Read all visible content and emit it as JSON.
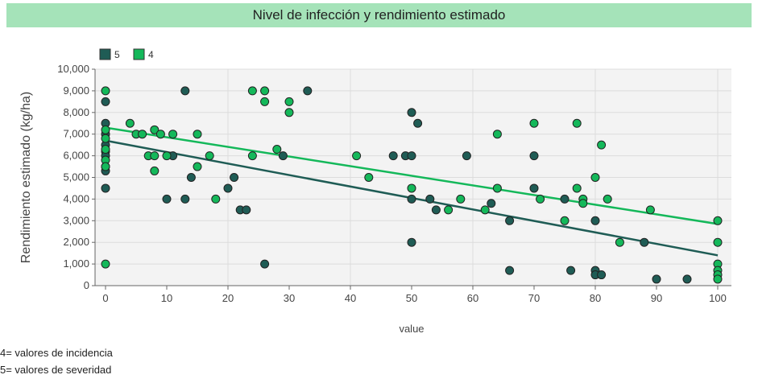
{
  "title": "Nivel de infección y rendimiento estimado",
  "notes": [
    "4= valores de incidencia",
    "5= valores de severidad"
  ],
  "chart_data": {
    "type": "scatter",
    "title": "Nivel de infección y rendimiento estimado",
    "xlabel": "value",
    "ylabel": "Rendimiento estimado (kg/ha)",
    "xlim": [
      0,
      100
    ],
    "ylim": [
      0,
      10000
    ],
    "x_ticks": [
      0,
      10,
      20,
      30,
      40,
      50,
      60,
      70,
      80,
      90,
      100
    ],
    "y_ticks": [
      0,
      1000,
      2000,
      3000,
      4000,
      5000,
      6000,
      7000,
      8000,
      9000,
      10000
    ],
    "x_tick_labels": [
      "0",
      "10",
      "20",
      "30",
      "40",
      "50",
      "60",
      "70",
      "80",
      "90",
      "100"
    ],
    "y_tick_labels": [
      "0",
      "1,000",
      "2,000",
      "3,000",
      "4,000",
      "5,000",
      "6,000",
      "7,000",
      "8,000",
      "9,000",
      "10,000"
    ],
    "grid": true,
    "legend_position": "top-left",
    "series": [
      {
        "name": "5",
        "color": "#1f5c55",
        "trendline": [
          [
            0,
            6700
          ],
          [
            100,
            1400
          ]
        ],
        "points": [
          [
            0,
            8500
          ],
          [
            0,
            7500
          ],
          [
            0,
            7000
          ],
          [
            0,
            6500
          ],
          [
            0,
            6200
          ],
          [
            0,
            6000
          ],
          [
            0,
            5500
          ],
          [
            0,
            5300
          ],
          [
            0,
            4500
          ],
          [
            10,
            4000
          ],
          [
            11,
            6000
          ],
          [
            13,
            9000
          ],
          [
            13,
            4000
          ],
          [
            14,
            5000
          ],
          [
            20,
            4500
          ],
          [
            21,
            5000
          ],
          [
            22,
            3500
          ],
          [
            23,
            3500
          ],
          [
            26,
            1000
          ],
          [
            29,
            6000
          ],
          [
            33,
            9000
          ],
          [
            47,
            6000
          ],
          [
            49,
            6000
          ],
          [
            50,
            8000
          ],
          [
            50,
            6000
          ],
          [
            50,
            4000
          ],
          [
            50,
            2000
          ],
          [
            51,
            7500
          ],
          [
            53,
            4000
          ],
          [
            54,
            3500
          ],
          [
            59,
            6000
          ],
          [
            63,
            3800
          ],
          [
            66,
            3000
          ],
          [
            66,
            700
          ],
          [
            70,
            6000
          ],
          [
            70,
            4500
          ],
          [
            75,
            4000
          ],
          [
            76,
            700
          ],
          [
            80,
            3000
          ],
          [
            80,
            700
          ],
          [
            80,
            500
          ],
          [
            81,
            500
          ],
          [
            88,
            2000
          ],
          [
            90,
            300
          ],
          [
            95,
            300
          ]
        ]
      },
      {
        "name": "4",
        "color": "#14b85a",
        "trendline": [
          [
            0,
            7300
          ],
          [
            100,
            2850
          ]
        ],
        "points": [
          [
            0,
            9000
          ],
          [
            0,
            7200
          ],
          [
            0,
            6800
          ],
          [
            0,
            6300
          ],
          [
            0,
            5800
          ],
          [
            0,
            5500
          ],
          [
            0,
            1000
          ],
          [
            4,
            7500
          ],
          [
            5,
            7000
          ],
          [
            6,
            7000
          ],
          [
            7,
            6000
          ],
          [
            8,
            7200
          ],
          [
            8,
            6000
          ],
          [
            8,
            5300
          ],
          [
            9,
            7000
          ],
          [
            10,
            6000
          ],
          [
            11,
            7000
          ],
          [
            15,
            7000
          ],
          [
            15,
            5500
          ],
          [
            17,
            6000
          ],
          [
            18,
            4000
          ],
          [
            24,
            9000
          ],
          [
            24,
            6000
          ],
          [
            26,
            9000
          ],
          [
            26,
            8500
          ],
          [
            28,
            6300
          ],
          [
            30,
            8500
          ],
          [
            30,
            8000
          ],
          [
            41,
            6000
          ],
          [
            43,
            5000
          ],
          [
            50,
            4500
          ],
          [
            56,
            3500
          ],
          [
            58,
            4000
          ],
          [
            62,
            3500
          ],
          [
            64,
            7000
          ],
          [
            64,
            4500
          ],
          [
            70,
            7500
          ],
          [
            71,
            4000
          ],
          [
            75,
            3000
          ],
          [
            77,
            7500
          ],
          [
            77,
            4500
          ],
          [
            78,
            4000
          ],
          [
            78,
            3800
          ],
          [
            80,
            5000
          ],
          [
            81,
            6500
          ],
          [
            82,
            4000
          ],
          [
            84,
            2000
          ],
          [
            89,
            3500
          ],
          [
            100,
            3000
          ],
          [
            100,
            2000
          ],
          [
            100,
            1000
          ],
          [
            100,
            700
          ],
          [
            100,
            500
          ],
          [
            100,
            300
          ]
        ]
      }
    ]
  }
}
